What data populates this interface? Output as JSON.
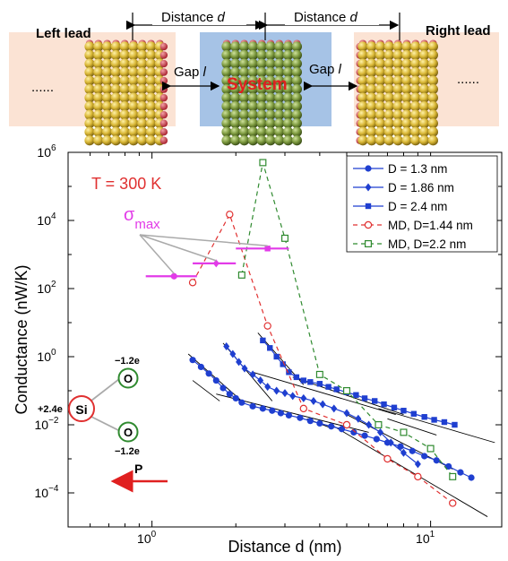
{
  "schematic": {
    "left_lead": "Left lead",
    "right_lead": "Right lead",
    "system": "System",
    "distance_left": "Distance",
    "distance_right": "Distance",
    "distance_symbol": "d",
    "gap_left": "Gap",
    "gap_right": "Gap",
    "gap_symbol": "l",
    "dots_left": "......",
    "dots_right": "......",
    "colors": {
      "lead_bg": "#fbe3d4",
      "system_bg": "#a6c3e6",
      "lead_atom": "#d6b634",
      "system_atom": "#7d9a3f",
      "cap": "#c8303e",
      "system_label": "#e02020"
    }
  },
  "inset": {
    "charge_si": "+2.4e",
    "charge_o_top": "−1.2e",
    "charge_o_bottom": "−1.2e",
    "si_label": "Si",
    "o_label": "O",
    "p_label": "P"
  },
  "chart_data": {
    "type": "scatter",
    "xscale": "log",
    "yscale": "log",
    "xlabel": "Distance d (nm)",
    "ylabel": "Conductance (nW/K)",
    "xlim": [
      0.5,
      18
    ],
    "ylim": [
      1e-05,
      1000000
    ],
    "xticks": [
      {
        "value": 1,
        "base": "10",
        "exp": "0"
      },
      {
        "value": 10,
        "base": "10",
        "exp": "1"
      }
    ],
    "yticks": [
      {
        "value": 0.0001,
        "base": "10",
        "exp": "−4"
      },
      {
        "value": 0.01,
        "base": "10",
        "exp": "−2"
      },
      {
        "value": 1,
        "base": "10",
        "exp": "0"
      },
      {
        "value": 100,
        "base": "10",
        "exp": "2"
      },
      {
        "value": 10000,
        "base": "10",
        "exp": "4"
      },
      {
        "value": 1000000,
        "base": "10",
        "exp": "6"
      }
    ],
    "temperature_label": "T = 300 K",
    "sigma_label": {
      "symbol": "σ",
      "subscript": "max"
    },
    "legend_position": "top-right",
    "series": [
      {
        "name": "D = 1.3 nm",
        "color": "#1f3fd0",
        "marker": "circle-filled",
        "line": "solid",
        "x": [
          1.4,
          1.5,
          1.6,
          1.7,
          1.8,
          1.9,
          2.0,
          2.1,
          2.3,
          2.5,
          2.7,
          2.9,
          3.1,
          3.4,
          3.7,
          4.0,
          4.4,
          4.8,
          5.3,
          5.8,
          6.4,
          7.0,
          7.8,
          8.6,
          9.5,
          10.5,
          11.6,
          12.8,
          14.0
        ],
        "y": [
          0.8,
          0.5,
          0.32,
          0.2,
          0.12,
          0.08,
          0.06,
          0.045,
          0.035,
          0.03,
          0.026,
          0.022,
          0.019,
          0.016,
          0.013,
          0.011,
          0.009,
          0.0075,
          0.006,
          0.0048,
          0.0038,
          0.003,
          0.0023,
          0.0017,
          0.0012,
          0.0009,
          0.0006,
          0.0004,
          0.00028
        ]
      },
      {
        "name": "D = 1.86 nm",
        "color": "#1f3fd0",
        "marker": "diamond-filled",
        "line": "solid",
        "x": [
          1.85,
          1.95,
          2.05,
          2.15,
          2.3,
          2.45,
          2.6,
          2.8,
          3.0,
          3.2,
          3.5,
          3.8,
          4.1,
          4.5,
          5.0,
          5.5,
          6.0,
          6.6,
          7.2,
          8.0,
          9.0
        ],
        "y": [
          2,
          1.2,
          0.7,
          0.45,
          0.3,
          0.2,
          0.13,
          0.1,
          0.085,
          0.07,
          0.06,
          0.05,
          0.04,
          0.03,
          0.022,
          0.015,
          0.01,
          0.006,
          0.003,
          0.0015,
          0.0007
        ]
      },
      {
        "name": "D = 2.4 nm",
        "color": "#1f3fd0",
        "marker": "square-filled",
        "line": "solid",
        "x": [
          2.5,
          2.65,
          2.8,
          2.95,
          3.1,
          3.3,
          3.5,
          3.7,
          4.0,
          4.3,
          4.6,
          5.0,
          5.4,
          5.8,
          6.3,
          6.8,
          7.4,
          8.0,
          8.7,
          9.5,
          10.3,
          11.2,
          12.2
        ],
        "y": [
          3,
          1.8,
          1.0,
          0.6,
          0.35,
          0.25,
          0.2,
          0.18,
          0.16,
          0.13,
          0.11,
          0.09,
          0.075,
          0.06,
          0.05,
          0.04,
          0.032,
          0.026,
          0.021,
          0.017,
          0.014,
          0.012,
          0.01
        ]
      },
      {
        "name": "MD, D=1.44 nm",
        "color": "#e03030",
        "marker": "circle-open",
        "line": "dashed",
        "x": [
          1.4,
          1.9,
          2.6,
          3.5,
          5.0,
          7.0,
          9.0,
          12.0
        ],
        "y": [
          150,
          15000,
          8,
          0.03,
          0.01,
          0.001,
          0.0003,
          5e-05
        ]
      },
      {
        "name": "MD, D=2.2 nm",
        "color": "#2f8a2f",
        "marker": "square-open",
        "line": "dashed",
        "x": [
          2.1,
          2.5,
          3.0,
          4.0,
          5.0,
          6.5,
          8.0,
          10.0,
          12.0
        ],
        "y": [
          250,
          500000,
          3000,
          0.3,
          0.1,
          0.01,
          0.006,
          0.002,
          0.0003
        ]
      }
    ],
    "sigma_max": [
      {
        "x": 1.2,
        "xerr": [
          0.95,
          1.45
        ],
        "y": 230
      },
      {
        "x": 1.7,
        "xerr": [
          1.4,
          2.0
        ],
        "y": 550
      },
      {
        "x": 2.6,
        "xerr": [
          2.0,
          3.1
        ],
        "y": 1500
      }
    ],
    "sigma_color": "#e23be8"
  }
}
